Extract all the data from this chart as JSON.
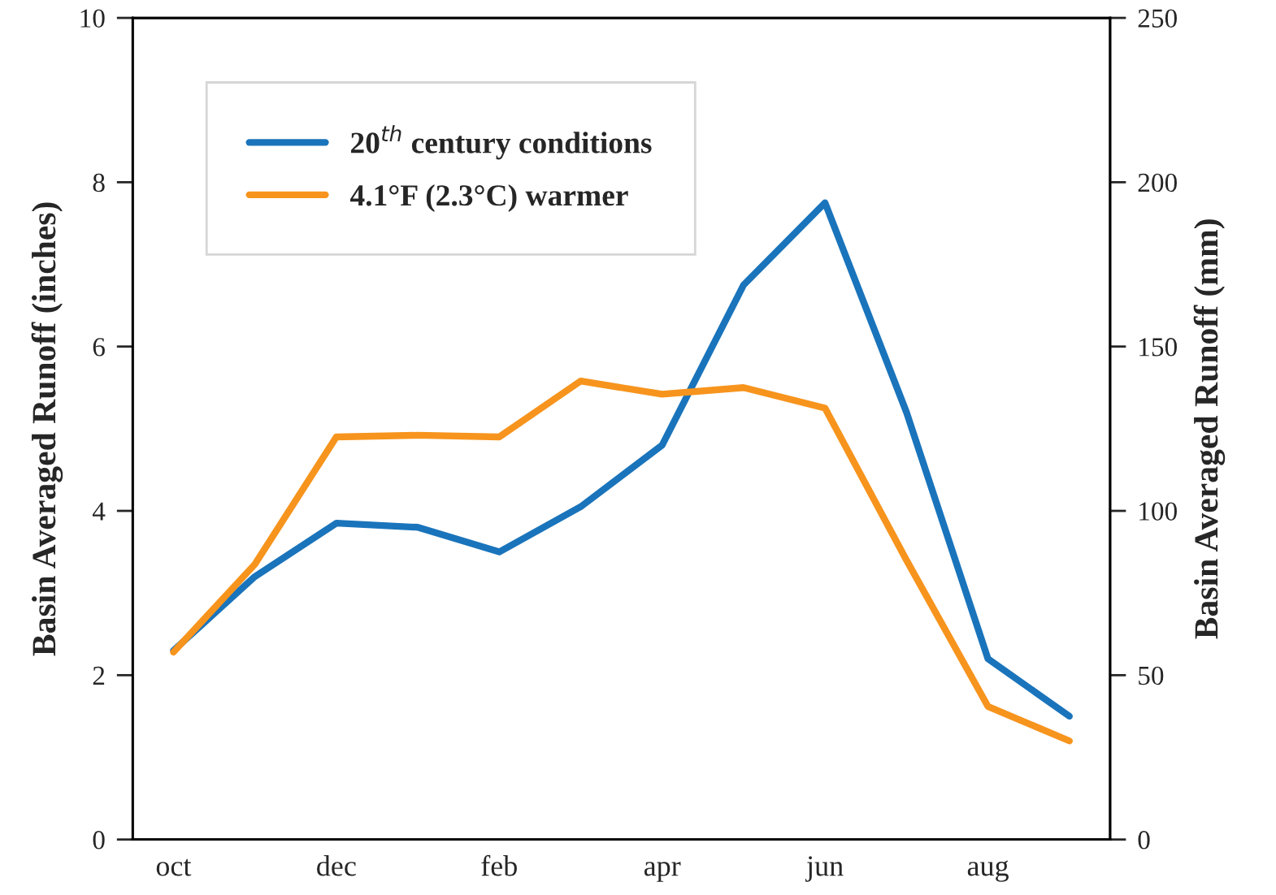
{
  "chart_data": {
    "type": "line",
    "ylabel": "Basin Averaged Runoff (inches)",
    "y2label": "Basin Averaged Runoff (mm)",
    "categories": [
      "oct",
      null,
      "dec",
      null,
      "feb",
      null,
      "apr",
      null,
      "jun",
      null,
      "aug",
      null
    ],
    "series": [
      {
        "name": "20$^{th}$ century conditions",
        "color": "#1a74bb",
        "values": [
          2.3,
          3.2,
          3.85,
          3.8,
          3.5,
          4.05,
          4.8,
          6.75,
          7.75,
          5.2,
          2.2,
          1.5
        ]
      },
      {
        "name": "4.1°F (2.3°C) warmer",
        "color": "#f7941d",
        "values": [
          2.28,
          3.35,
          4.9,
          4.92,
          4.9,
          5.58,
          5.42,
          5.5,
          5.25,
          3.4,
          1.62,
          1.2
        ]
      }
    ],
    "ylim": [
      0,
      10
    ],
    "yticks": [
      0,
      2,
      4,
      6,
      8,
      10
    ],
    "y2lim": [
      0,
      250
    ],
    "y2ticks": [
      0,
      50,
      100,
      150,
      200,
      250
    ],
    "legend": "top left",
    "grid": false,
    "marker": "none",
    "line_style": "solid"
  }
}
